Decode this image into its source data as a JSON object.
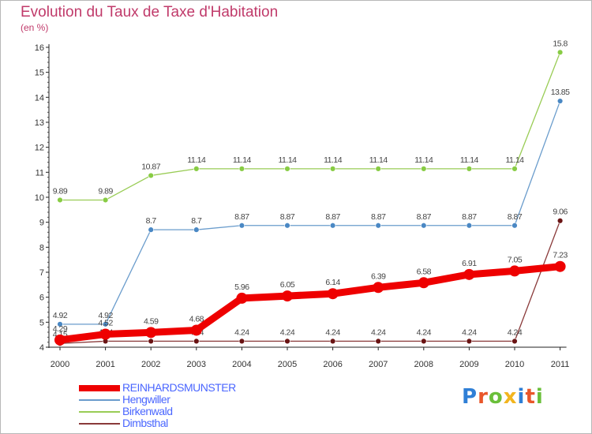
{
  "title": "Evolution du Taux de Taxe d'Habitation",
  "subtitle": "(en %)",
  "brand": "Proxiti",
  "brand_colors": [
    "#2f7fd6",
    "#e9562a",
    "#6abf3a",
    "#f2b51f",
    "#2f7fd6",
    "#e9562a",
    "#6abf3a"
  ],
  "chart_data": {
    "type": "line",
    "title": "Evolution du Taux de Taxe d'Habitation",
    "ylabel": "(en %)",
    "xlabel": "",
    "x": [
      "2000",
      "2001",
      "2002",
      "2003",
      "2004",
      "2005",
      "2006",
      "2007",
      "2008",
      "2009",
      "2010",
      "2011"
    ],
    "ylim": [
      4,
      16
    ],
    "yticks": [
      4,
      5,
      6,
      7,
      8,
      9,
      10,
      11,
      12,
      13,
      14,
      15,
      16
    ],
    "grid": false,
    "legend": "bottom-left",
    "series": [
      {
        "name": "Birkenwald",
        "color": "#99cc55",
        "point_color": "#88cc44",
        "values": [
          9.89,
          9.89,
          10.87,
          11.14,
          11.14,
          11.14,
          11.14,
          11.14,
          11.14,
          11.14,
          11.14,
          15.8
        ],
        "labels": [
          "9.89",
          "9.89",
          "10.87",
          "11.14",
          "11.14",
          "11.14",
          "11.14",
          "11.14",
          "11.14",
          "11.14",
          "11.14",
          "15.8"
        ]
      },
      {
        "name": "Hengwiller",
        "color": "#6a9ccc",
        "point_color": "#4a88c4",
        "values": [
          4.92,
          4.92,
          8.7,
          8.7,
          8.87,
          8.87,
          8.87,
          8.87,
          8.87,
          8.87,
          8.87,
          13.85
        ],
        "labels": [
          "4.92",
          "4.92",
          "8.7",
          "8.7",
          "8.87",
          "8.87",
          "8.87",
          "8.87",
          "8.87",
          "8.87",
          "8.87",
          "13.85"
        ]
      },
      {
        "name": "Dimbsthal",
        "color": "#8a3a3a",
        "point_color": "#6a1414",
        "values": [
          4.15,
          4.24,
          4.24,
          4.24,
          4.24,
          4.24,
          4.24,
          4.24,
          4.24,
          4.24,
          4.24,
          9.06
        ],
        "labels": [
          "4.15",
          "4.24",
          "4.24",
          "4.24",
          "4.24",
          "4.24",
          "4.24",
          "4.24",
          "4.24",
          "4.24",
          "4.24",
          "9.06"
        ]
      },
      {
        "name": "REINHARDSMUNSTER",
        "color": "#ee0000",
        "point_color": "#ee0000",
        "values": [
          4.29,
          4.52,
          4.59,
          4.68,
          5.96,
          6.05,
          6.14,
          6.39,
          6.58,
          6.91,
          7.05,
          7.23
        ],
        "labels": [
          "4.29",
          "4.52",
          "4.59",
          "4.68",
          "5.96",
          "6.05",
          "6.14",
          "6.39",
          "6.58",
          "6.91",
          "7.05",
          "7.23"
        ]
      }
    ]
  },
  "legend": [
    {
      "label": "REINHARDSMUNSTER",
      "color": "#ee0000"
    },
    {
      "label": "Hengwiller",
      "color": "#6a9ccc"
    },
    {
      "label": "Birkenwald",
      "color": "#99cc55"
    },
    {
      "label": "Dimbsthal",
      "color": "#8a3a3a"
    }
  ]
}
